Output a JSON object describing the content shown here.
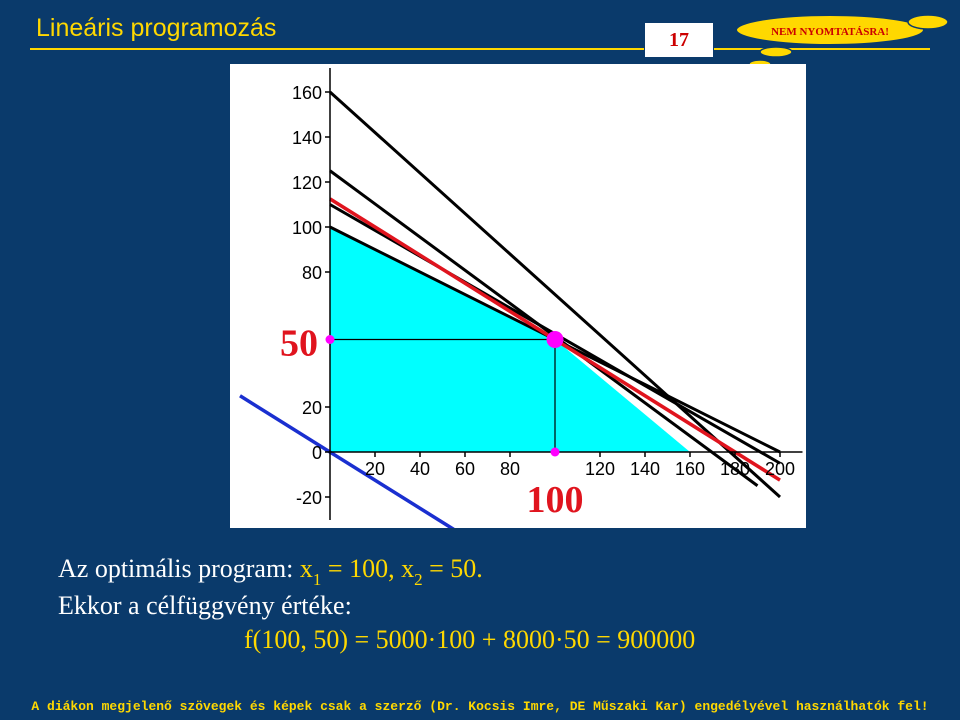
{
  "header": {
    "title": "Lineáris programozás",
    "page_number": "17",
    "seal_text": "NEM NYOMTATÁSRA!"
  },
  "colors": {
    "background": "#0a3a6b",
    "accent_yellow": "#ffd800",
    "feasible_region": "#00ffff",
    "objective_line": "#e0141e",
    "zero_objective_line": "#1a2fd0",
    "constraint_line": "#000000",
    "optimum_point": "#ff00ff"
  },
  "chart_data": {
    "type": "line",
    "xlim": [
      -80,
      210
    ],
    "ylim": [
      -30,
      165
    ],
    "x_ticks": [
      20,
      40,
      60,
      80,
      120,
      140,
      160,
      180,
      200
    ],
    "y_ticks": [
      160,
      140,
      120,
      100,
      80,
      20,
      0,
      -20
    ],
    "x_tick_labels": [
      "20",
      "40",
      "60",
      "80",
      "120",
      "140",
      "160",
      "180",
      "200"
    ],
    "y_tick_labels": [
      "160",
      "140",
      "120",
      "100",
      "80",
      "20",
      "0",
      "-20"
    ],
    "highlight_x_label": "100",
    "highlight_y_label": "50",
    "optimum": {
      "x": 100,
      "y": 50
    },
    "feasible_region": [
      [
        0,
        0
      ],
      [
        0,
        100
      ],
      [
        100,
        50
      ],
      [
        160,
        0
      ]
    ],
    "constraints": [
      {
        "x": [
          0,
          200
        ],
        "y": [
          100,
          0
        ]
      },
      {
        "x": [
          0,
          200
        ],
        "y": [
          160,
          -20
        ]
      },
      {
        "x": [
          0,
          190
        ],
        "y": [
          125,
          -15
        ]
      },
      {
        "x": [
          0,
          200
        ],
        "y": [
          110,
          -5
        ]
      }
    ],
    "objective_line": {
      "x": [
        0,
        200
      ],
      "y": [
        112.5,
        -12.5
      ]
    },
    "zero_objective_line": {
      "x": [
        -40,
        55
      ],
      "y": [
        25,
        -34.4
      ]
    }
  },
  "text": {
    "line1_prefix": "Az optimális program: ",
    "line1_x": "x",
    "line1_sub1": "1",
    "line1_mid": " = 100, ",
    "line1_x2": "x",
    "line1_sub2": "2",
    "line1_end": " = 50.",
    "line2": "Ekkor a célfüggvény értéke:",
    "formula": "f(100, 50) = 5000·100 + 8000·50 = 900000"
  },
  "footer": {
    "text": "A diákon megjelenő szövegek és képek csak a szerző (Dr. Kocsis Imre, DE Műszaki Kar) engedélyével használhatók fel!"
  }
}
